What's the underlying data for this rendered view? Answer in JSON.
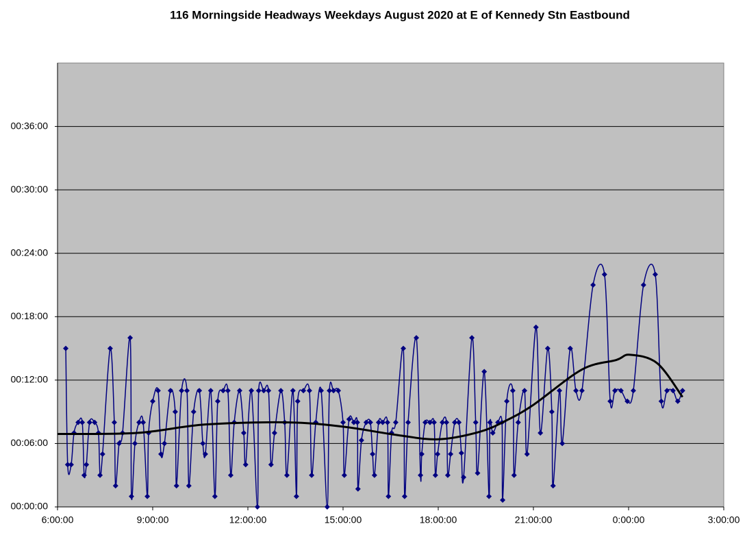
{
  "chart_data": {
    "type": "line",
    "title": "116 Morningside Headways Weekdays August 2020 at E of Kennedy Stn Eastbound",
    "xlim": [
      6,
      27
    ],
    "xticks": [
      {
        "value": 6,
        "label": "6:00:00"
      },
      {
        "value": 9,
        "label": "9:00:00"
      },
      {
        "value": 12,
        "label": "12:00:00"
      },
      {
        "value": 15,
        "label": "15:00:00"
      },
      {
        "value": 18,
        "label": "18:00:00"
      },
      {
        "value": 21,
        "label": "21:00:00"
      },
      {
        "value": 24,
        "label": "0:00:00"
      },
      {
        "value": 27,
        "label": "3:00:00"
      }
    ],
    "ylim": [
      0,
      42
    ],
    "yticks": [
      {
        "value": 0,
        "label": "00:00:00"
      },
      {
        "value": 6,
        "label": "00:06:00"
      },
      {
        "value": 12,
        "label": "00:12:00"
      },
      {
        "value": 18,
        "label": "00:18:00"
      },
      {
        "value": 24,
        "label": "00:24:00"
      },
      {
        "value": 30,
        "label": "00:30:00"
      },
      {
        "value": 36,
        "label": "00:36:00"
      }
    ],
    "grid": true,
    "smooth": true,
    "series": [
      {
        "color": "#000080",
        "marker": "diamond",
        "x": [
          6.26,
          6.32,
          6.43,
          6.52,
          6.65,
          6.78,
          6.84,
          6.91,
          7.01,
          7.17,
          7.29,
          7.34,
          7.42,
          7.66,
          7.79,
          7.83,
          7.94,
          8.05,
          8.29,
          8.33,
          8.44,
          8.57,
          8.7,
          8.83,
          8.87,
          9.0,
          9.17,
          9.26,
          9.37,
          9.56,
          9.71,
          9.75,
          9.91,
          10.08,
          10.14,
          10.29,
          10.47,
          10.58,
          10.66,
          10.83,
          10.96,
          11.05,
          11.22,
          11.37,
          11.46,
          11.57,
          11.74,
          11.87,
          11.93,
          12.11,
          12.3,
          12.34,
          12.5,
          12.65,
          12.73,
          12.84,
          13.04,
          13.16,
          13.23,
          13.42,
          13.53,
          13.57,
          13.75,
          13.94,
          14.01,
          14.14,
          14.31,
          14.5,
          14.57,
          14.7,
          14.85,
          15.0,
          15.04,
          15.19,
          15.34,
          15.45,
          15.47,
          15.58,
          15.73,
          15.86,
          15.93,
          15.99,
          16.12,
          16.25,
          16.4,
          16.43,
          16.53,
          16.66,
          16.9,
          16.94,
          17.05,
          17.31,
          17.44,
          17.48,
          17.59,
          17.74,
          17.87,
          17.91,
          17.98,
          18.13,
          18.26,
          18.3,
          18.39,
          18.52,
          18.65,
          18.73,
          18.8,
          19.06,
          19.18,
          19.24,
          19.45,
          19.6,
          19.63,
          19.72,
          19.88,
          20.01,
          20.03,
          20.16,
          20.35,
          20.39,
          20.52,
          20.72,
          20.8,
          21.08,
          21.22,
          21.45,
          21.58,
          21.62,
          21.82,
          21.91,
          22.16,
          22.34,
          22.53,
          22.88,
          23.24,
          23.42,
          23.57,
          23.76,
          23.96,
          24.15,
          24.47,
          24.84,
          25.03,
          25.21,
          25.4,
          25.55,
          25.7
        ],
        "values": [
          15,
          4,
          4,
          7,
          8,
          8,
          3,
          4,
          8,
          8,
          7,
          3,
          5,
          15,
          8,
          2,
          6,
          7,
          16,
          1,
          6,
          8,
          8,
          1,
          7,
          10,
          11,
          5,
          6,
          11,
          9,
          2,
          11,
          11,
          2,
          9,
          11,
          6,
          5,
          11,
          1,
          10,
          11,
          11,
          3,
          8,
          11,
          7,
          4,
          11,
          0,
          11,
          11,
          11,
          4,
          7,
          11,
          8,
          3,
          11,
          1,
          10,
          11,
          11,
          3,
          8,
          11,
          0,
          11,
          11,
          11,
          8,
          3,
          8.3,
          8,
          8,
          1.7,
          6.3,
          8,
          8,
          5,
          3,
          8,
          8,
          8,
          1,
          7,
          8,
          15,
          1,
          8,
          16,
          3,
          5,
          8,
          8,
          8,
          3,
          5,
          8,
          8,
          3,
          5,
          8,
          8,
          5.1,
          2.8,
          16,
          8,
          3.2,
          12.8,
          1,
          8,
          7,
          8,
          8,
          0.65,
          10,
          11,
          3,
          8,
          11,
          5,
          17,
          7,
          15,
          9,
          2,
          11,
          6,
          15,
          11,
          11,
          21,
          22,
          10,
          11,
          11,
          10,
          11,
          21,
          22,
          10,
          11,
          11,
          10,
          11
        ]
      },
      {
        "color": "#000000",
        "marker": "none",
        "x": [
          6.0,
          8.5,
          10.66,
          13.25,
          14.98,
          16.71,
          18.0,
          19.3,
          20.16,
          21.02,
          22.53,
          23.61,
          24.04,
          24.9,
          25.7
        ],
        "values": [
          6.9,
          7.0,
          7.8,
          8.0,
          7.6,
          6.8,
          6.4,
          7.1,
          8.2,
          9.7,
          13.0,
          13.9,
          14.4,
          13.6,
          10.4
        ]
      }
    ]
  }
}
